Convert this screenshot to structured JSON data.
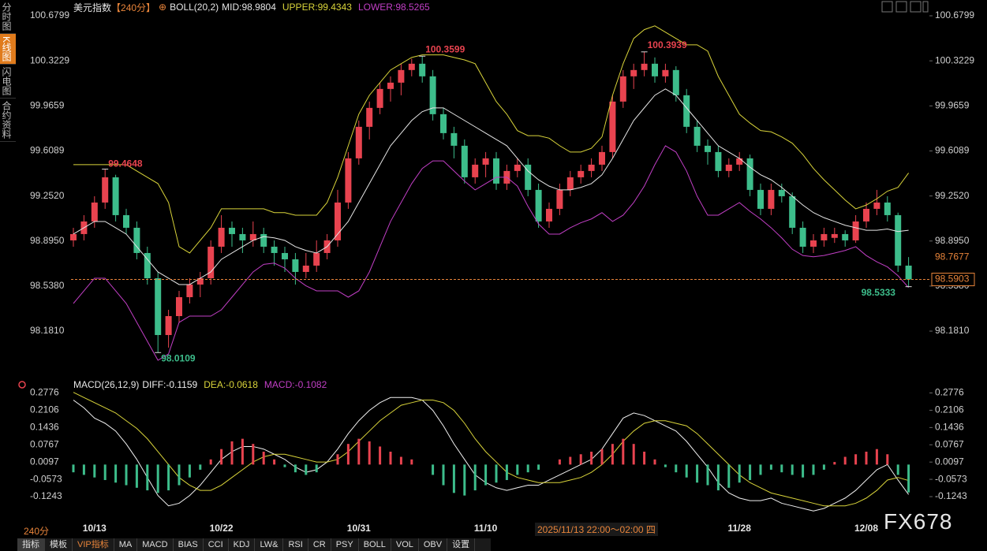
{
  "chart_data": [
    {
      "type": "candlestick",
      "title": "美元指数",
      "period_tag": "【240分】",
      "indicator": "BOLL(20,2)",
      "categories": [
        null,
        null,
        "10/13",
        null,
        null,
        null,
        null,
        null,
        null,
        null,
        null,
        null,
        null,
        null,
        "10/22",
        null,
        null,
        null,
        null,
        null,
        null,
        null,
        null,
        null,
        null,
        null,
        null,
        "10/31",
        null,
        null,
        null,
        null,
        null,
        null,
        null,
        null,
        null,
        null,
        null,
        "11/10",
        null,
        null,
        null,
        null,
        null,
        null,
        null,
        null,
        null,
        null,
        null,
        null,
        null,
        null,
        null,
        null,
        null,
        null,
        null,
        null,
        null,
        null,
        null,
        "11/28",
        null,
        null,
        null,
        null,
        null,
        null,
        null,
        null,
        null,
        null,
        null,
        "12/08",
        null,
        null,
        null,
        null
      ],
      "values": [
        [
          98.9,
          99.0,
          98.85,
          98.95
        ],
        [
          98.95,
          99.1,
          98.9,
          99.05
        ],
        [
          99.05,
          99.25,
          99.0,
          99.2
        ],
        [
          99.2,
          99.4648,
          99.15,
          99.4
        ],
        [
          99.4,
          99.42,
          99.05,
          99.1
        ],
        [
          99.1,
          99.15,
          98.95,
          99.0
        ],
        [
          99.0,
          99.05,
          98.75,
          98.8
        ],
        [
          98.8,
          98.85,
          98.55,
          98.6
        ],
        [
          98.6,
          98.65,
          98.0109,
          98.15
        ],
        [
          98.15,
          98.35,
          98.05,
          98.3
        ],
        [
          98.3,
          98.5,
          98.25,
          98.45
        ],
        [
          98.45,
          98.6,
          98.4,
          98.55
        ],
        [
          98.55,
          98.65,
          98.45,
          98.6
        ],
        [
          98.6,
          98.9,
          98.55,
          98.85
        ],
        [
          98.85,
          99.1,
          98.8,
          99.0
        ],
        [
          99.0,
          99.05,
          98.85,
          98.95
        ],
        [
          98.95,
          99.0,
          98.8,
          98.9
        ],
        [
          98.9,
          99.05,
          98.85,
          98.95
        ],
        [
          98.95,
          99.0,
          98.8,
          98.85
        ],
        [
          98.85,
          98.9,
          98.7,
          98.8
        ],
        [
          98.8,
          98.85,
          98.65,
          98.75
        ],
        [
          98.75,
          98.8,
          98.55,
          98.65
        ],
        [
          98.65,
          98.8,
          98.6,
          98.7
        ],
        [
          98.7,
          98.9,
          98.65,
          98.8
        ],
        [
          98.8,
          98.95,
          98.75,
          98.9
        ],
        [
          98.9,
          99.3,
          98.85,
          99.2
        ],
        [
          99.2,
          99.6,
          99.15,
          99.55
        ],
        [
          99.55,
          99.85,
          99.5,
          99.8
        ],
        [
          99.8,
          100.0,
          99.7,
          99.95
        ],
        [
          99.95,
          100.15,
          99.9,
          100.1
        ],
        [
          100.1,
          100.2,
          100.0,
          100.15
        ],
        [
          100.15,
          100.3,
          100.05,
          100.25
        ],
        [
          100.25,
          100.34,
          100.2,
          100.3
        ],
        [
          100.3,
          100.3599,
          100.15,
          100.2
        ],
        [
          100.2,
          100.25,
          99.85,
          99.9
        ],
        [
          99.9,
          99.95,
          99.7,
          99.75
        ],
        [
          99.75,
          99.8,
          99.55,
          99.65
        ],
        [
          99.65,
          99.7,
          99.35,
          99.4
        ],
        [
          99.4,
          99.55,
          99.35,
          99.5
        ],
        [
          99.5,
          99.6,
          99.4,
          99.55
        ],
        [
          99.55,
          99.6,
          99.3,
          99.35
        ],
        [
          99.35,
          99.5,
          99.3,
          99.45
        ],
        [
          99.45,
          99.55,
          99.4,
          99.5
        ],
        [
          99.5,
          99.55,
          99.25,
          99.3
        ],
        [
          99.3,
          99.35,
          99.0,
          99.05
        ],
        [
          99.05,
          99.2,
          99.0,
          99.15
        ],
        [
          99.15,
          99.35,
          99.1,
          99.3
        ],
        [
          99.3,
          99.45,
          99.25,
          99.4
        ],
        [
          99.4,
          99.5,
          99.35,
          99.45
        ],
        [
          99.45,
          99.55,
          99.4,
          99.5
        ],
        [
          99.5,
          99.65,
          99.45,
          99.6
        ],
        [
          99.6,
          100.05,
          99.55,
          100.0
        ],
        [
          100.0,
          100.25,
          99.95,
          100.2
        ],
        [
          100.2,
          100.3,
          100.1,
          100.25
        ],
        [
          100.25,
          100.3939,
          100.2,
          100.3
        ],
        [
          100.3,
          100.35,
          100.15,
          100.2
        ],
        [
          100.2,
          100.3,
          100.15,
          100.25
        ],
        [
          100.25,
          100.28,
          100.0,
          100.05
        ],
        [
          100.05,
          100.1,
          99.75,
          99.8
        ],
        [
          99.8,
          99.85,
          99.6,
          99.65
        ],
        [
          99.65,
          99.7,
          99.5,
          99.6
        ],
        [
          99.6,
          99.65,
          99.4,
          99.45
        ],
        [
          99.45,
          99.55,
          99.4,
          99.5
        ],
        [
          99.5,
          99.6,
          99.45,
          99.55
        ],
        [
          99.55,
          99.58,
          99.25,
          99.3
        ],
        [
          99.3,
          99.35,
          99.1,
          99.15
        ],
        [
          99.15,
          99.35,
          99.1,
          99.3
        ],
        [
          99.3,
          99.35,
          99.2,
          99.25
        ],
        [
          99.25,
          99.28,
          98.95,
          99.0
        ],
        [
          99.0,
          99.05,
          98.8,
          98.85
        ],
        [
          98.85,
          98.95,
          98.8,
          98.9
        ],
        [
          98.9,
          99.0,
          98.85,
          98.95
        ],
        [
          98.92,
          99.0,
          98.88,
          98.95
        ],
        [
          98.95,
          98.98,
          98.85,
          98.9
        ],
        [
          98.9,
          99.1,
          98.88,
          99.05
        ],
        [
          99.05,
          99.2,
          99.0,
          99.15
        ],
        [
          99.15,
          99.3,
          99.1,
          99.2
        ],
        [
          99.2,
          99.25,
          99.05,
          99.1
        ],
        [
          99.1,
          99.12,
          98.65,
          98.7
        ],
        [
          98.7,
          98.7677,
          98.5333,
          98.5903
        ]
      ],
      "up_color": "#e8434f",
      "down_color": "#3dbd8b",
      "series": [
        {
          "name": "MID:",
          "color": "#e6e6e6",
          "values": [
            98.95,
            99.0,
            99.05,
            99.05,
            99.0,
            98.95,
            98.85,
            98.75,
            98.65,
            98.6,
            98.55,
            98.55,
            98.6,
            98.65,
            98.75,
            98.8,
            98.85,
            98.9,
            98.93,
            98.92,
            98.9,
            98.85,
            98.82,
            98.8,
            98.85,
            98.95,
            99.05,
            99.2,
            99.35,
            99.5,
            99.65,
            99.75,
            99.85,
            99.92,
            99.95,
            99.95,
            99.9,
            99.85,
            99.8,
            99.75,
            99.7,
            99.65,
            99.55,
            99.45,
            99.38,
            99.33,
            99.3,
            99.3,
            99.32,
            99.35,
            99.42,
            99.55,
            99.7,
            99.85,
            99.95,
            100.05,
            100.1,
            100.05,
            99.95,
            99.85,
            99.75,
            99.65,
            99.6,
            99.55,
            99.48,
            99.42,
            99.38,
            99.32,
            99.25,
            99.18,
            99.12,
            99.08,
            99.05,
            99.02,
            99.0,
            98.98,
            98.98,
            98.99,
            98.97,
            98.9804
          ]
        },
        {
          "name": "UPPER:",
          "color": "#d9d43a",
          "values": [
            99.5,
            99.5,
            99.5,
            99.5,
            99.5,
            99.5,
            99.45,
            99.4,
            99.35,
            99.2,
            98.85,
            98.8,
            98.9,
            99.0,
            99.15,
            99.15,
            99.15,
            99.15,
            99.15,
            99.12,
            99.12,
            99.1,
            99.1,
            99.1,
            99.2,
            99.4,
            99.65,
            99.9,
            100.05,
            100.15,
            100.25,
            100.3,
            100.35,
            100.37,
            100.37,
            100.37,
            100.35,
            100.33,
            100.3,
            100.15,
            100.0,
            99.9,
            99.77,
            99.73,
            99.73,
            99.71,
            99.65,
            99.6,
            99.6,
            99.63,
            99.72,
            100.05,
            100.3,
            100.5,
            100.57,
            100.6,
            100.55,
            100.5,
            100.45,
            100.45,
            100.4,
            100.2,
            100.05,
            99.9,
            99.83,
            99.77,
            99.76,
            99.72,
            99.67,
            99.58,
            99.47,
            99.38,
            99.3,
            99.22,
            99.15,
            99.18,
            99.23,
            99.29,
            99.32,
            99.4343
          ]
        },
        {
          "name": "LOWER:",
          "color": "#c23fc6",
          "values": [
            98.4,
            98.5,
            98.6,
            98.6,
            98.5,
            98.4,
            98.25,
            98.1,
            97.95,
            98.0,
            98.25,
            98.3,
            98.3,
            98.3,
            98.35,
            98.45,
            98.55,
            98.65,
            98.71,
            98.72,
            98.68,
            98.6,
            98.54,
            98.5,
            98.5,
            98.5,
            98.45,
            98.5,
            98.65,
            98.85,
            99.05,
            99.2,
            99.35,
            99.47,
            99.53,
            99.53,
            99.45,
            99.37,
            99.3,
            99.35,
            99.4,
            99.4,
            99.33,
            99.17,
            99.03,
            98.95,
            98.95,
            99.0,
            99.04,
            99.07,
            99.12,
            99.05,
            99.1,
            99.2,
            99.33,
            99.5,
            99.65,
            99.6,
            99.45,
            99.25,
            99.1,
            99.1,
            99.15,
            99.2,
            99.13,
            99.07,
            99.0,
            98.92,
            98.83,
            98.78,
            98.77,
            98.78,
            98.8,
            98.82,
            98.85,
            98.78,
            98.73,
            98.69,
            98.62,
            98.5265
          ]
        }
      ],
      "ylim": [
        97.869,
        100.755
      ],
      "yticks": [
        100.6799,
        100.3229,
        99.9659,
        99.6089,
        {
          "value": 99.252,
          "label": "99.2520"
        },
        {
          "value": 98.895,
          "label": "98.8950"
        },
        {
          "value": 98.538,
          "label": "98.5380"
        },
        {
          "value": 98.181,
          "label": "98.1810"
        }
      ],
      "grid": false
    },
    {
      "type": "macd",
      "indicator": "MACD(26,12,9)",
      "series": [
        {
          "name": "DIFF:",
          "color": "#f0f0f0",
          "values": [
            0.25,
            0.22,
            0.18,
            0.16,
            0.13,
            0.08,
            0.02,
            -0.05,
            -0.12,
            -0.16,
            -0.15,
            -0.12,
            -0.08,
            -0.03,
            0.02,
            0.05,
            0.07,
            0.07,
            0.06,
            0.04,
            0.02,
            -0.01,
            -0.03,
            -0.02,
            0.01,
            0.06,
            0.12,
            0.17,
            0.21,
            0.24,
            0.26,
            0.26,
            0.26,
            0.25,
            0.21,
            0.15,
            0.08,
            0.02,
            -0.04,
            -0.07,
            -0.09,
            -0.1,
            -0.09,
            -0.08,
            -0.08,
            -0.06,
            -0.04,
            -0.02,
            0.0,
            0.02,
            0.06,
            0.12,
            0.18,
            0.2,
            0.19,
            0.17,
            0.15,
            0.13,
            0.09,
            0.04,
            -0.01,
            -0.07,
            -0.11,
            -0.13,
            -0.14,
            -0.14,
            -0.13,
            -0.15,
            -0.16,
            -0.17,
            -0.18,
            -0.17,
            -0.15,
            -0.13,
            -0.1,
            -0.06,
            -0.02,
            0.0,
            -0.06,
            -0.1159
          ]
        },
        {
          "name": "DEA:",
          "color": "#d9d43a",
          "values": [
            0.28,
            0.26,
            0.24,
            0.22,
            0.2,
            0.17,
            0.14,
            0.1,
            0.05,
            0.0,
            -0.05,
            -0.08,
            -0.1,
            -0.1,
            -0.08,
            -0.05,
            -0.02,
            0.01,
            0.03,
            0.04,
            0.04,
            0.03,
            0.02,
            0.01,
            0.01,
            0.02,
            0.05,
            0.09,
            0.13,
            0.17,
            0.2,
            0.23,
            0.24,
            0.25,
            0.25,
            0.24,
            0.21,
            0.16,
            0.1,
            0.05,
            0.01,
            -0.03,
            -0.05,
            -0.06,
            -0.07,
            -0.07,
            -0.07,
            -0.06,
            -0.05,
            -0.03,
            0.0,
            0.04,
            0.09,
            0.13,
            0.16,
            0.17,
            0.17,
            0.16,
            0.15,
            0.12,
            0.08,
            0.04,
            0.0,
            -0.04,
            -0.07,
            -0.09,
            -0.11,
            -0.12,
            -0.13,
            -0.14,
            -0.15,
            -0.16,
            -0.16,
            -0.16,
            -0.15,
            -0.13,
            -0.1,
            -0.06,
            -0.05,
            -0.0618
          ]
        },
        {
          "name": "MACD:",
          "color": "#c23fc6",
          "up_color": "#e8434f",
          "down_color": "#3dbd8b",
          "values": [
            -0.03,
            -0.04,
            -0.05,
            -0.06,
            -0.07,
            -0.08,
            -0.09,
            -0.1,
            -0.11,
            -0.1,
            -0.08,
            -0.05,
            -0.02,
            0.02,
            0.06,
            0.09,
            0.1,
            0.08,
            0.05,
            0.02,
            -0.01,
            -0.03,
            -0.04,
            -0.03,
            0.0,
            0.04,
            0.08,
            0.1,
            0.09,
            0.07,
            0.05,
            0.03,
            0.02,
            0.0,
            -0.04,
            -0.08,
            -0.11,
            -0.12,
            -0.1,
            -0.08,
            -0.07,
            -0.06,
            -0.04,
            -0.03,
            -0.02,
            0.0,
            0.02,
            0.03,
            0.04,
            0.05,
            0.06,
            0.08,
            0.1,
            0.08,
            0.05,
            0.02,
            -0.01,
            -0.03,
            -0.05,
            -0.07,
            -0.08,
            -0.1,
            -0.09,
            -0.07,
            -0.06,
            -0.04,
            -0.02,
            -0.03,
            -0.04,
            -0.05,
            -0.04,
            -0.02,
            0.01,
            0.03,
            0.04,
            0.05,
            0.06,
            0.04,
            -0.04,
            -0.1082
          ]
        }
      ],
      "ylim": [
        -0.2312,
        0.3036
      ],
      "yticks": [
        0.2776,
        0.2106,
        0.1436,
        0.0767,
        0.0097,
        -0.0573,
        -0.1243
      ]
    }
  ],
  "sidebar": [
    "分时图",
    "K线图",
    "闪电图",
    "合约资料"
  ],
  "period": "240分",
  "crosshair_label": "2025/11/13 22:00～02:00 四",
  "watermark": "FX678",
  "toolbar": [
    "指标",
    "模板",
    "VIP指标",
    "MA",
    "MACD",
    "BIAS",
    "CCI",
    "KDJ",
    "LW&",
    "RSI",
    "CR",
    "PSY",
    "BOLL",
    "VOL",
    "OBV",
    "设置"
  ]
}
